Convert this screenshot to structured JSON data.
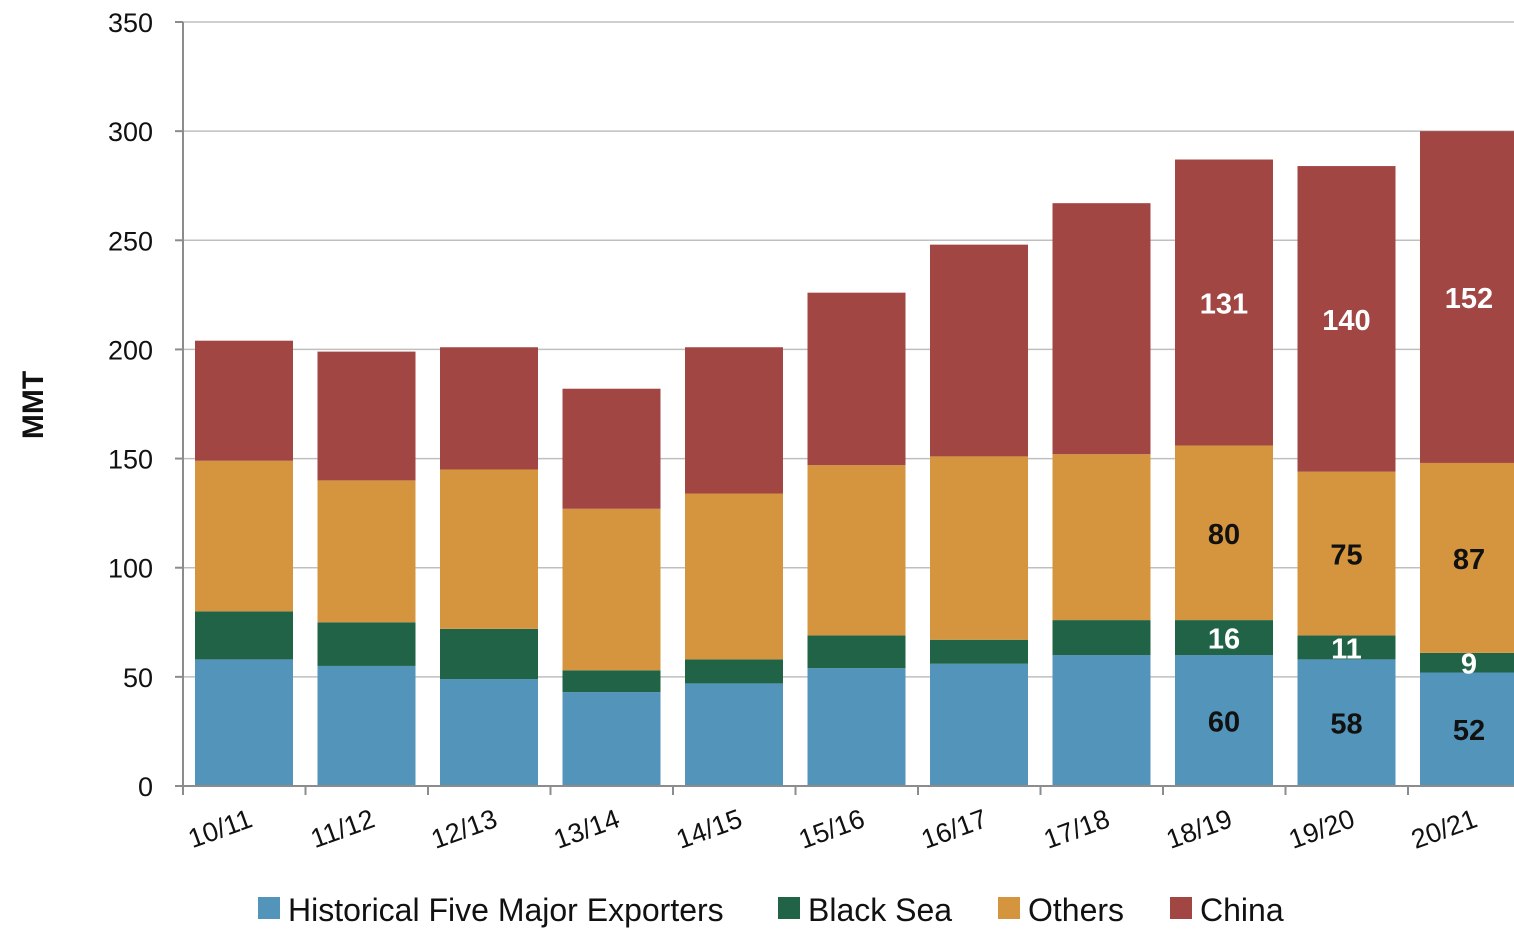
{
  "chart_data": {
    "type": "bar",
    "stacked": true,
    "title": "",
    "xlabel": "",
    "ylabel": "MMT",
    "ylim": [
      0,
      350
    ],
    "yticks": [
      0,
      50,
      100,
      150,
      200,
      250,
      300,
      350
    ],
    "grid": "horizontal",
    "legend_position": "bottom",
    "categories": [
      "10/11",
      "11/12",
      "12/13",
      "13/14",
      "14/15",
      "15/16",
      "16/17",
      "17/18",
      "18/19",
      "19/20",
      "20/21"
    ],
    "series": [
      {
        "name": "Historical Five Major Exporters",
        "color": "#5394bb",
        "values": [
          58,
          55,
          49,
          43,
          47,
          54,
          56,
          60,
          60,
          58,
          52
        ],
        "labels": [
          null,
          null,
          null,
          null,
          null,
          null,
          null,
          null,
          "60",
          "58",
          "52"
        ],
        "label_color": "#111111"
      },
      {
        "name": "Black Sea",
        "color": "#216346",
        "values": [
          22,
          20,
          23,
          10,
          11,
          15,
          11,
          16,
          16,
          11,
          9
        ],
        "labels": [
          null,
          null,
          null,
          null,
          null,
          null,
          null,
          null,
          "16",
          "11",
          "9"
        ],
        "label_color": "#ffffff"
      },
      {
        "name": "Others",
        "color": "#d5953f",
        "values": [
          69,
          65,
          73,
          74,
          76,
          78,
          84,
          76,
          80,
          75,
          87
        ],
        "labels": [
          null,
          null,
          null,
          null,
          null,
          null,
          null,
          null,
          "80",
          "75",
          "87"
        ],
        "label_color": "#111111"
      },
      {
        "name": "China",
        "color": "#a14643",
        "values": [
          55,
          59,
          56,
          55,
          67,
          79,
          97,
          115,
          131,
          140,
          152
        ],
        "labels": [
          null,
          null,
          null,
          null,
          null,
          null,
          null,
          null,
          "131",
          "140",
          "152"
        ],
        "label_color": "#ffffff"
      }
    ]
  }
}
